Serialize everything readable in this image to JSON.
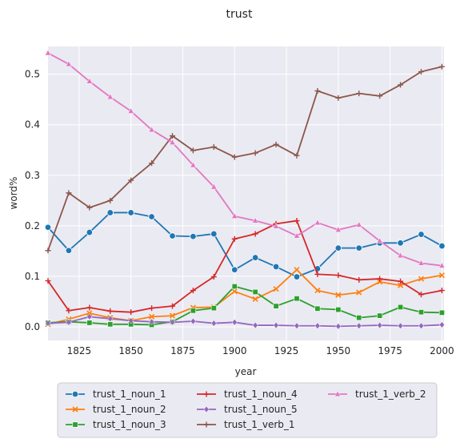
{
  "chart_data": {
    "type": "line",
    "title": "trust",
    "xlabel": "year",
    "ylabel": "word%",
    "xlim": [
      1810,
      2001
    ],
    "ylim": [
      -0.027,
      0.555
    ],
    "grid": true,
    "legend_position": "bottom-center",
    "x": [
      1810,
      1820,
      1830,
      1840,
      1850,
      1860,
      1870,
      1880,
      1890,
      1900,
      1910,
      1920,
      1930,
      1940,
      1950,
      1960,
      1970,
      1980,
      1990,
      2000
    ],
    "x_ticks": [
      1825,
      1850,
      1875,
      1900,
      1925,
      1950,
      1975,
      2000
    ],
    "y_ticks": [
      0.0,
      0.1,
      0.2,
      0.3,
      0.4,
      0.5
    ],
    "series": [
      {
        "name": "trust_1_noun_1",
        "color": "#1f77b4",
        "marker": "circle",
        "values": [
          0.197,
          0.151,
          0.187,
          0.226,
          0.226,
          0.218,
          0.18,
          0.179,
          0.184,
          0.113,
          0.137,
          0.119,
          0.099,
          0.115,
          0.156,
          0.156,
          0.166,
          0.166,
          0.183,
          0.16
        ]
      },
      {
        "name": "trust_1_noun_2",
        "color": "#ff7f0e",
        "marker": "x",
        "values": [
          0.005,
          0.015,
          0.027,
          0.018,
          0.012,
          0.02,
          0.022,
          0.038,
          0.039,
          0.07,
          0.055,
          0.075,
          0.113,
          0.072,
          0.063,
          0.068,
          0.089,
          0.082,
          0.095,
          0.102
        ]
      },
      {
        "name": "trust_1_noun_3",
        "color": "#2ca02c",
        "marker": "square",
        "values": [
          0.008,
          0.01,
          0.008,
          0.005,
          0.005,
          0.004,
          0.01,
          0.032,
          0.037,
          0.08,
          0.069,
          0.041,
          0.056,
          0.036,
          0.034,
          0.018,
          0.022,
          0.039,
          0.029,
          0.028
        ]
      },
      {
        "name": "trust_1_noun_4",
        "color": "#d62728",
        "marker": "plus",
        "values": [
          0.091,
          0.032,
          0.038,
          0.031,
          0.029,
          0.037,
          0.041,
          0.072,
          0.099,
          0.174,
          0.184,
          0.204,
          0.21,
          0.104,
          0.102,
          0.093,
          0.095,
          0.09,
          0.064,
          0.072
        ]
      },
      {
        "name": "trust_1_noun_5",
        "color": "#9467bd",
        "marker": "diamond",
        "values": [
          0.007,
          0.009,
          0.02,
          0.016,
          0.012,
          0.01,
          0.009,
          0.011,
          0.007,
          0.009,
          0.003,
          0.003,
          0.002,
          0.002,
          0.001,
          0.002,
          0.003,
          0.002,
          0.002,
          0.004
        ]
      },
      {
        "name": "trust_1_verb_1",
        "color": "#8c564b",
        "marker": "plus",
        "values": [
          0.151,
          0.265,
          0.236,
          0.25,
          0.29,
          0.324,
          0.378,
          0.349,
          0.356,
          0.336,
          0.344,
          0.361,
          0.339,
          0.467,
          0.453,
          0.462,
          0.457,
          0.479,
          0.505,
          0.515
        ]
      },
      {
        "name": "trust_1_verb_2",
        "color": "#e377c2",
        "marker": "triangle",
        "values": [
          0.542,
          0.52,
          0.486,
          0.455,
          0.427,
          0.39,
          0.365,
          0.32,
          0.277,
          0.219,
          0.21,
          0.199,
          0.18,
          0.206,
          0.192,
          0.202,
          0.17,
          0.141,
          0.126,
          0.121
        ]
      }
    ]
  }
}
